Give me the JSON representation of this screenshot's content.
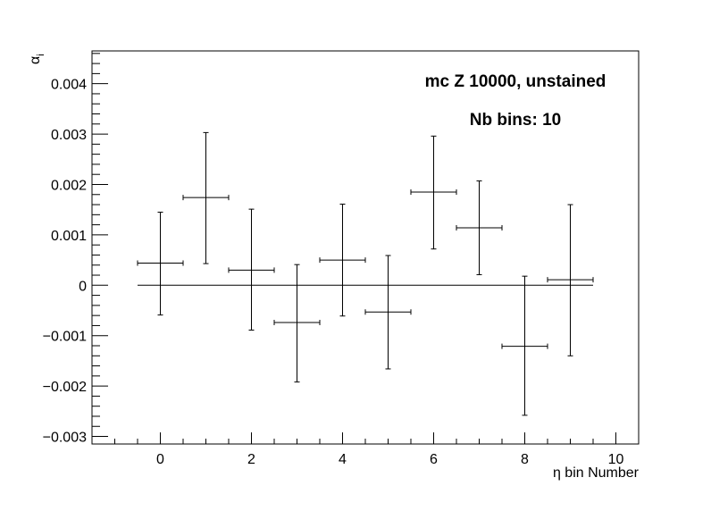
{
  "chart_data": {
    "type": "scatter",
    "title": "",
    "xlabel": "η bin Number",
    "ylabel": "α",
    "ylabel_subscript": "i",
    "xlim": [
      -1.5,
      10.5
    ],
    "ylim": [
      -0.00315,
      0.00465
    ],
    "x_ticks": [
      0,
      2,
      4,
      6,
      8,
      10
    ],
    "x_tick_labels": [
      "0",
      "2",
      "4",
      "6",
      "8",
      "10"
    ],
    "y_ticks": [
      -0.003,
      -0.002,
      -0.001,
      0,
      0.001,
      0.002,
      0.003,
      0.004
    ],
    "y_tick_labels": [
      "−0.003",
      "−0.002",
      "−0.001",
      "0",
      "0.001",
      "0.002",
      "0.003",
      "0.004"
    ],
    "grid": false,
    "annotations": [
      "mc Z 10000, unstained",
      "Nb bins: 10"
    ],
    "reference_line": {
      "y": 0,
      "x_range": [
        -0.5,
        9.5
      ]
    },
    "series": [
      {
        "points": [
          {
            "x": 0,
            "xerr": 0.5,
            "y": 0.00044,
            "yerr_low": 0.00103,
            "yerr_high": 0.00101
          },
          {
            "x": 1,
            "xerr": 0.5,
            "y": 0.00174,
            "yerr_low": 0.00131,
            "yerr_high": 0.00129
          },
          {
            "x": 2,
            "xerr": 0.5,
            "y": 0.0003,
            "yerr_low": 0.00119,
            "yerr_high": 0.00121
          },
          {
            "x": 3,
            "xerr": 0.5,
            "y": -0.00074,
            "yerr_low": 0.00118,
            "yerr_high": 0.00115
          },
          {
            "x": 4,
            "xerr": 0.5,
            "y": 0.0005,
            "yerr_low": 0.00111,
            "yerr_high": 0.00111
          },
          {
            "x": 5,
            "xerr": 0.5,
            "y": -0.00053,
            "yerr_low": 0.00113,
            "yerr_high": 0.00112
          },
          {
            "x": 6,
            "xerr": 0.5,
            "y": 0.00185,
            "yerr_low": 0.00113,
            "yerr_high": 0.00111
          },
          {
            "x": 7,
            "xerr": 0.5,
            "y": 0.00114,
            "yerr_low": 0.00093,
            "yerr_high": 0.00093
          },
          {
            "x": 8,
            "xerr": 0.5,
            "y": -0.00121,
            "yerr_low": 0.00137,
            "yerr_high": 0.00139
          },
          {
            "x": 9,
            "xerr": 0.5,
            "y": 0.00011,
            "yerr_low": 0.00151,
            "yerr_high": 0.00149
          }
        ]
      }
    ]
  }
}
